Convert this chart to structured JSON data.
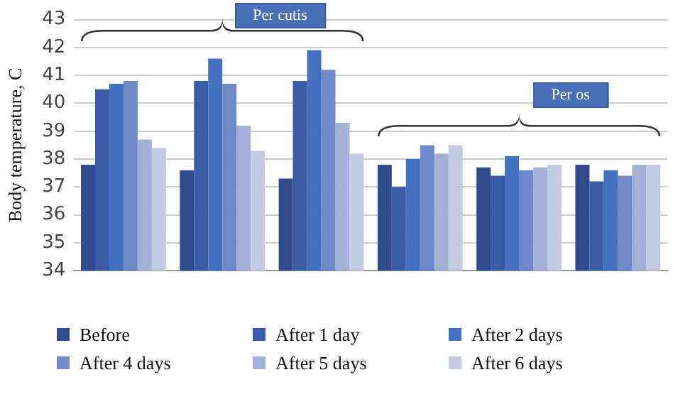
{
  "chart_data": {
    "type": "bar",
    "ylabel": "Body temperature, C",
    "categories": [
      null,
      null,
      null,
      null,
      null,
      null
    ],
    "series": [
      {
        "name": "Before",
        "color": "#2f4b8c",
        "values": [
          37.8,
          37.6,
          37.3,
          37.8,
          37.7,
          37.8
        ]
      },
      {
        "name": "After 1 day",
        "color": "#3a5ba5",
        "values": [
          40.5,
          40.8,
          40.8,
          37.0,
          37.4,
          37.2
        ]
      },
      {
        "name": "After 2 days",
        "color": "#4470c0",
        "values": [
          40.7,
          41.6,
          41.9,
          38.0,
          38.1,
          37.6
        ]
      },
      {
        "name": "After 4 days",
        "color": "#6f88c8",
        "values": [
          40.8,
          40.7,
          41.2,
          38.5,
          37.6,
          37.4
        ]
      },
      {
        "name": "After 5 days",
        "color": "#a3b1d8",
        "values": [
          38.7,
          39.2,
          39.3,
          38.2,
          37.7,
          37.8
        ]
      },
      {
        "name": "After 6 days",
        "color": "#c3cbe5",
        "values": [
          38.4,
          38.3,
          38.2,
          38.5,
          37.8,
          37.8
        ]
      }
    ],
    "ylim": [
      34,
      43
    ],
    "yticks": [
      34,
      35,
      36,
      37,
      38,
      39,
      40,
      41,
      42,
      43
    ],
    "grid": "y",
    "legend": "bottom",
    "annotations": [
      "Per cutis",
      "Per os"
    ]
  }
}
